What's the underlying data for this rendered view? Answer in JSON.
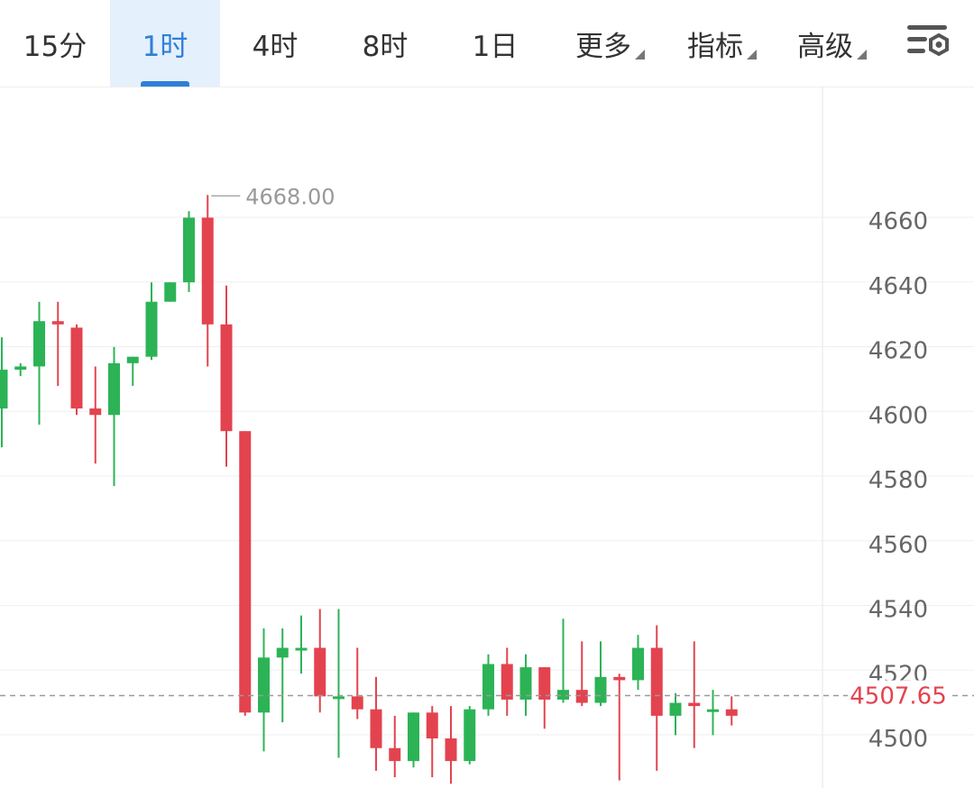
{
  "tabs": [
    {
      "label": "15分",
      "active": false
    },
    {
      "label": "1时",
      "active": true
    },
    {
      "label": "4时",
      "active": false
    },
    {
      "label": "8时",
      "active": false
    },
    {
      "label": "1日",
      "active": false
    }
  ],
  "menus": [
    {
      "label": "更多"
    },
    {
      "label": "指标"
    },
    {
      "label": "高级"
    }
  ],
  "settings_icon": "chart-settings-icon",
  "colors": {
    "up": "#2cb356",
    "down": "#e3434f",
    "accent": "#2f7fd8",
    "grid": "#efefef",
    "axis_text": "#666666"
  },
  "chart_data": {
    "type": "candlestick",
    "ylim": [
      4490,
      4695
    ],
    "yticks": [
      4500,
      4520,
      4540,
      4560,
      4580,
      4600,
      4620,
      4640,
      4660
    ],
    "current_price": 4507.65,
    "current_price_label": "4507.65",
    "high_marker": {
      "value": 4668.0,
      "label": "4668.00"
    },
    "candles": [
      {
        "o": 4602,
        "h": 4624,
        "l": 4590,
        "c": 4614
      },
      {
        "o": 4614,
        "h": 4616,
        "l": 4612,
        "c": 4615
      },
      {
        "o": 4615,
        "h": 4635,
        "l": 4597,
        "c": 4629
      },
      {
        "o": 4629,
        "h": 4635,
        "l": 4609,
        "c": 4628
      },
      {
        "o": 4627,
        "h": 4628,
        "l": 4600,
        "c": 4602
      },
      {
        "o": 4602,
        "h": 4615,
        "l": 4585,
        "c": 4600
      },
      {
        "o": 4600,
        "h": 4621,
        "l": 4578,
        "c": 4616
      },
      {
        "o": 4616,
        "h": 4618,
        "l": 4609,
        "c": 4618
      },
      {
        "o": 4618,
        "h": 4641,
        "l": 4617,
        "c": 4635
      },
      {
        "o": 4635,
        "h": 4641,
        "l": 4635,
        "c": 4641
      },
      {
        "o": 4641,
        "h": 4663,
        "l": 4638,
        "c": 4661
      },
      {
        "o": 4661,
        "h": 4668,
        "l": 4615,
        "c": 4628
      },
      {
        "o": 4628,
        "h": 4640,
        "l": 4584,
        "c": 4595
      },
      {
        "o": 4595,
        "h": 4595,
        "l": 4507,
        "c": 4508
      },
      {
        "o": 4508,
        "h": 4534,
        "l": 4496,
        "c": 4525
      },
      {
        "o": 4525,
        "h": 4534,
        "l": 4505,
        "c": 4528
      },
      {
        "o": 4528,
        "h": 4538,
        "l": 4520,
        "c": 4528
      },
      {
        "o": 4528,
        "h": 4540,
        "l": 4508,
        "c": 4513
      },
      {
        "o": 4513,
        "h": 4540,
        "l": 4494,
        "c": 4513
      },
      {
        "o": 4513,
        "h": 4528,
        "l": 4506,
        "c": 4509
      },
      {
        "o": 4509,
        "h": 4519,
        "l": 4490,
        "c": 4497
      },
      {
        "o": 4497,
        "h": 4507,
        "l": 4488,
        "c": 4493
      },
      {
        "o": 4493,
        "h": 4508,
        "l": 4491,
        "c": 4508
      },
      {
        "o": 4508,
        "h": 4510,
        "l": 4488,
        "c": 4500
      },
      {
        "o": 4500,
        "h": 4510,
        "l": 4486,
        "c": 4493
      },
      {
        "o": 4493,
        "h": 4510,
        "l": 4492,
        "c": 4509
      },
      {
        "o": 4509,
        "h": 4526,
        "l": 4507,
        "c": 4523
      },
      {
        "o": 4523,
        "h": 4528,
        "l": 4507,
        "c": 4512
      },
      {
        "o": 4512,
        "h": 4526,
        "l": 4507,
        "c": 4522
      },
      {
        "o": 4522,
        "h": 4522,
        "l": 4503,
        "c": 4512
      },
      {
        "o": 4512,
        "h": 4537,
        "l": 4511,
        "c": 4515
      },
      {
        "o": 4515,
        "h": 4530,
        "l": 4510,
        "c": 4511
      },
      {
        "o": 4511,
        "h": 4530,
        "l": 4510,
        "c": 4519
      },
      {
        "o": 4519,
        "h": 4520,
        "l": 4487,
        "c": 4518
      },
      {
        "o": 4518,
        "h": 4532,
        "l": 4515,
        "c": 4528
      },
      {
        "o": 4528,
        "h": 4535,
        "l": 4490,
        "c": 4507
      },
      {
        "o": 4507,
        "h": 4514,
        "l": 4501,
        "c": 4511
      },
      {
        "o": 4511,
        "h": 4530,
        "l": 4497,
        "c": 4510
      },
      {
        "o": 4509,
        "h": 4515,
        "l": 4501,
        "c": 4509
      },
      {
        "o": 4509,
        "h": 4513,
        "l": 4504,
        "c": 4507
      }
    ]
  }
}
